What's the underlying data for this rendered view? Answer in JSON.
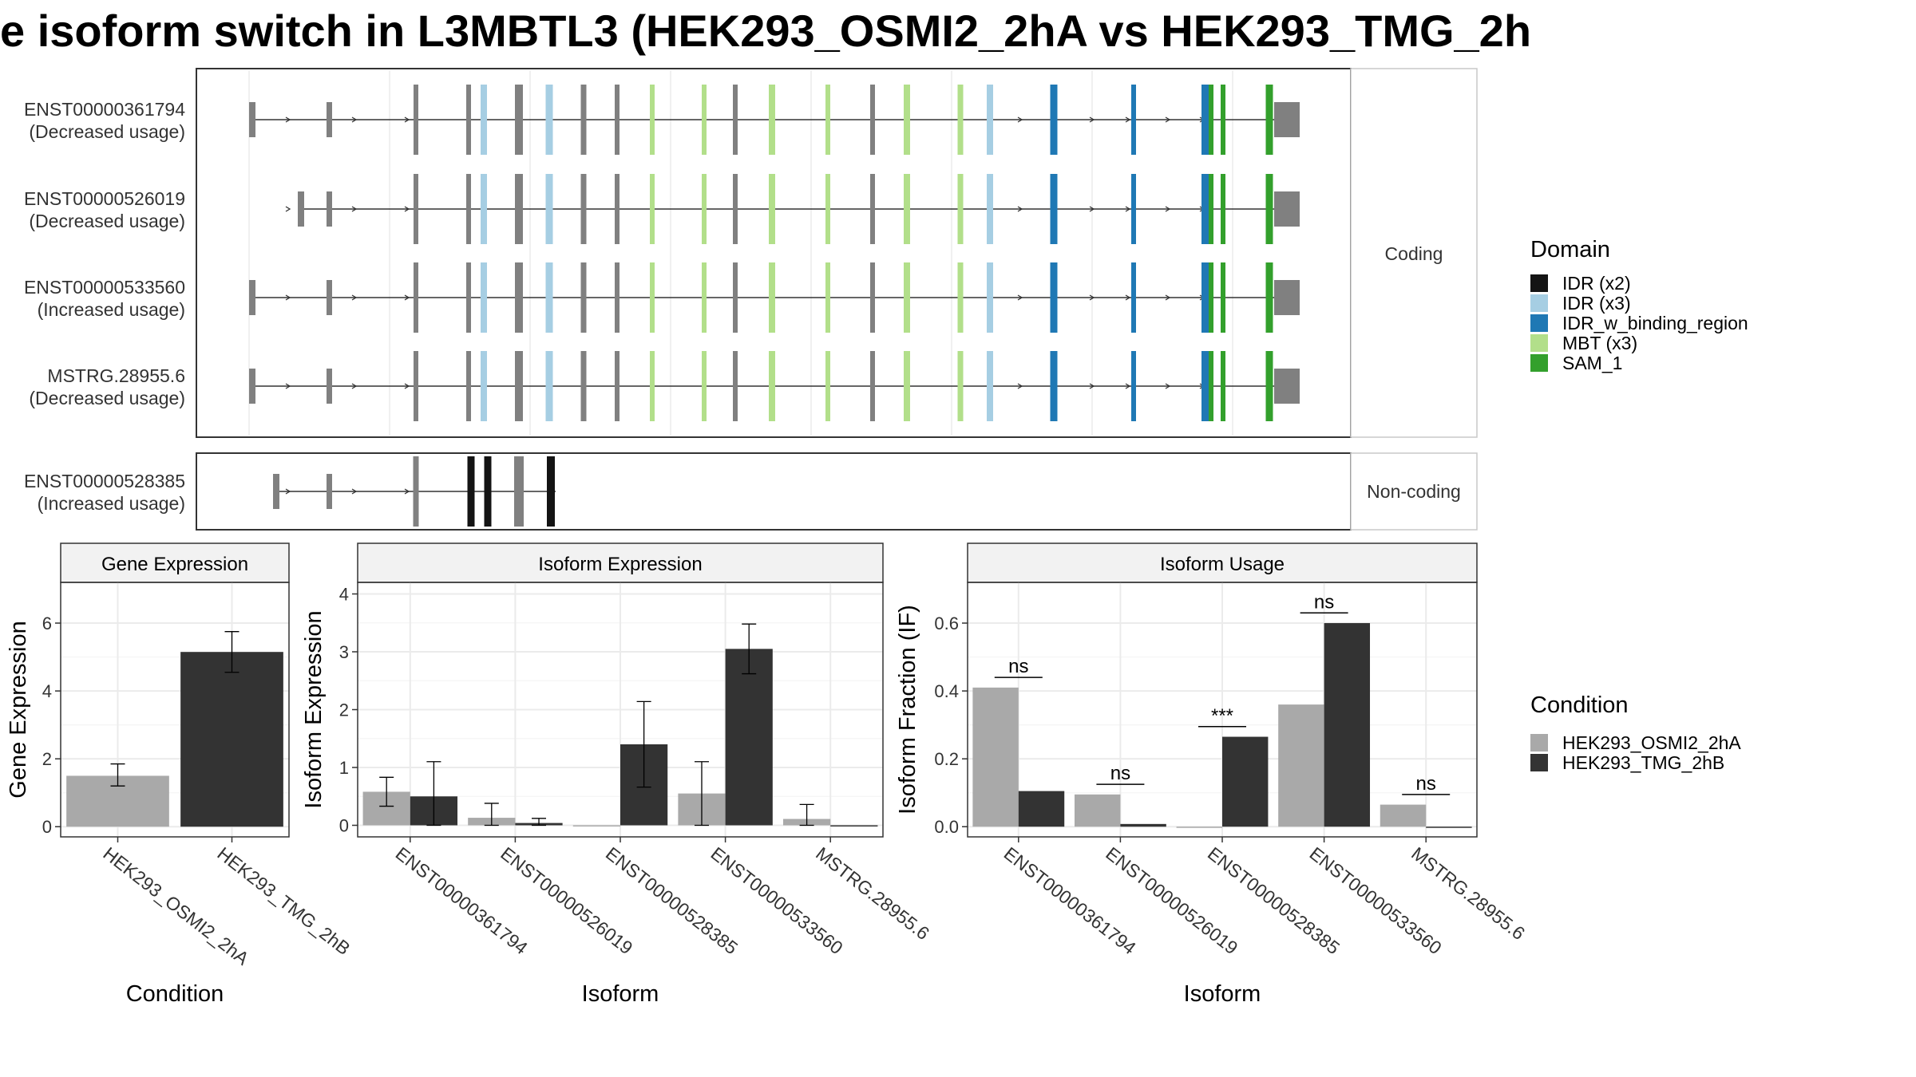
{
  "title": "e isoform switch in L3MBTL3 (HEK293_OSMI2_2hA vs HEK293_TMG_2h",
  "colors": {
    "grey_exon": "#808080",
    "IDR (x2)": "#141414",
    "IDR (x3)": "#a6cee3",
    "IDR_w_binding_region": "#1f78b4",
    "MBT (x3)": "#b2df8a",
    "SAM_1": "#33a02c",
    "cond_a": "#a9a9a9",
    "cond_b": "#333333",
    "strip_bg": "#f2f2f2",
    "grid": "#ebebeb"
  },
  "transcripts": {
    "coding_strip": "Coding",
    "noncoding_strip": "Non-coding",
    "rows": [
      {
        "id": "ENST00000361794",
        "usage": "(Decreased usage)",
        "group": "coding",
        "start": 0
      },
      {
        "id": "ENST00000526019",
        "usage": "(Decreased usage)",
        "group": "coding",
        "start": 1
      },
      {
        "id": "ENST00000533560",
        "usage": "(Increased usage)",
        "group": "coding",
        "start": 0
      },
      {
        "id": "MSTRG.28955.6",
        "usage": "(Decreased usage)",
        "group": "coding",
        "start": 2
      },
      {
        "id": "ENST00000528385",
        "usage": "(Increased usage)",
        "group": "noncoding",
        "start": 3
      }
    ],
    "legend_title": "Domain",
    "domains": [
      "IDR (x2)",
      "IDR (x3)",
      "IDR_w_binding_region",
      "MBT (x3)",
      "SAM_1"
    ]
  },
  "chart_data": [
    {
      "type": "bar",
      "panel_title": "Gene Expression",
      "xlabel": "Condition",
      "ylabel": "Gene Expression",
      "ylim": [
        -0.3,
        7.2
      ],
      "yticks": [
        0,
        2,
        4,
        6
      ],
      "categories": [
        "HEK293_OSMI2_2hA",
        "HEK293_TMG_2hB"
      ],
      "values": [
        1.5,
        5.15
      ],
      "err_low": [
        1.2,
        4.55
      ],
      "err_high": [
        1.85,
        5.75
      ]
    },
    {
      "type": "bar",
      "panel_title": "Isoform Expression",
      "xlabel": "Isoform",
      "ylabel": "Isoform Expression",
      "ylim": [
        -0.2,
        4.2
      ],
      "yticks": [
        0,
        1,
        2,
        3,
        4
      ],
      "categories": [
        "ENST00000361794",
        "ENST00000526019",
        "ENST00000528385",
        "ENST00000533560",
        "MSTRG.28955.6"
      ],
      "series": [
        {
          "name": "HEK293_OSMI2_2hA",
          "values": [
            0.58,
            0.13,
            0.0,
            0.55,
            0.11
          ],
          "err_low": [
            0.33,
            0.0,
            0.0,
            0.0,
            0.0
          ],
          "err_high": [
            0.83,
            0.38,
            0.0,
            1.1,
            0.36
          ]
        },
        {
          "name": "HEK293_TMG_2hB",
          "values": [
            0.5,
            0.04,
            1.4,
            3.05,
            0.0
          ],
          "err_low": [
            0.0,
            0.0,
            0.66,
            2.62,
            0.0
          ],
          "err_high": [
            1.1,
            0.12,
            2.14,
            3.48,
            0.0
          ]
        }
      ]
    },
    {
      "type": "bar",
      "panel_title": "Isoform Usage",
      "xlabel": "Isoform",
      "ylabel": "Isoform Fraction (IF)",
      "ylim": [
        -0.03,
        0.72
      ],
      "yticks": [
        0.0,
        0.2,
        0.4,
        0.6
      ],
      "categories": [
        "ENST00000361794",
        "ENST00000526019",
        "ENST00000528385",
        "ENST00000533560",
        "MSTRG.28955.6"
      ],
      "series": [
        {
          "name": "HEK293_OSMI2_2hA",
          "values": [
            0.41,
            0.095,
            0.0,
            0.36,
            0.065
          ]
        },
        {
          "name": "HEK293_TMG_2hB",
          "values": [
            0.105,
            0.008,
            0.265,
            0.6,
            0.0
          ]
        }
      ],
      "significance": [
        "ns",
        "ns",
        "***",
        "ns",
        "ns"
      ]
    }
  ],
  "condition_legend": {
    "title": "Condition",
    "items": [
      "HEK293_OSMI2_2hA",
      "HEK293_TMG_2hB"
    ]
  }
}
